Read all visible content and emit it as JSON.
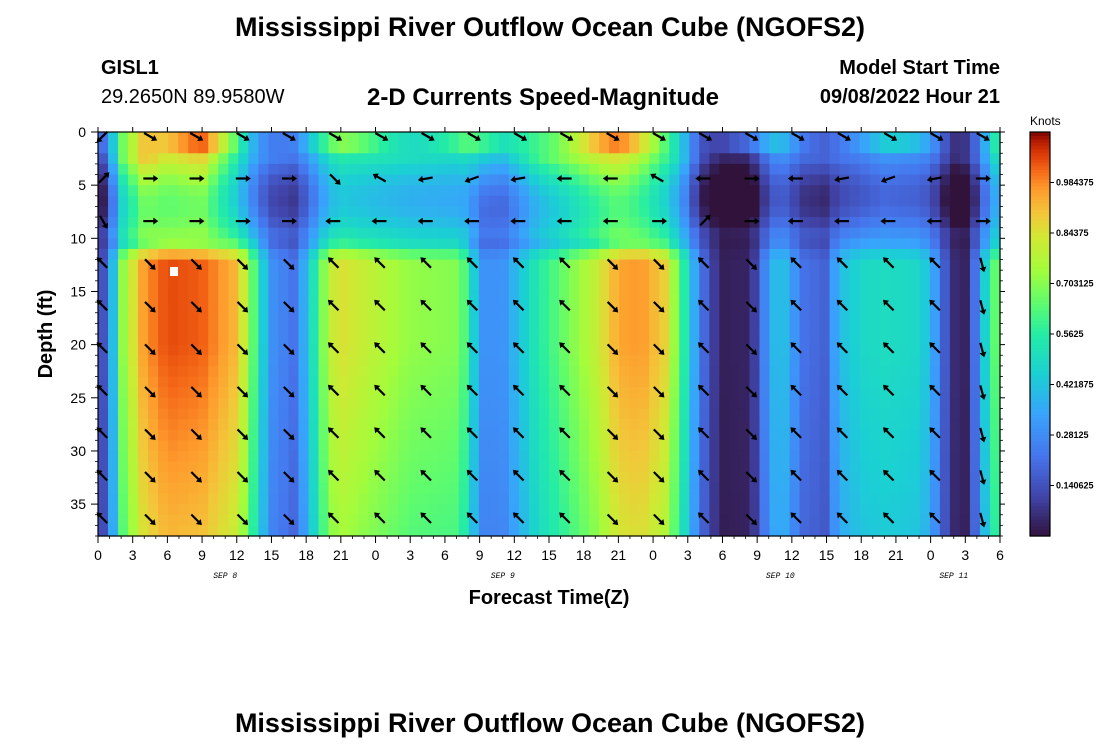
{
  "page": {
    "title": "Mississippi River Outflow Ocean Cube (NGOFS2)",
    "title_repeat": "Mississippi River Outflow Ocean Cube (NGOFS2)"
  },
  "header": {
    "station_id": "GISL1",
    "station_coords": "29.2650N  89.9580W",
    "subtitle": "2-D Currents Speed-Magnitude",
    "model_start_label": "Model Start Time",
    "model_start_value": "09/08/2022 Hour 21"
  },
  "chart_data": {
    "type": "heatmap",
    "title": "2-D Currents Speed-Magnitude",
    "xlabel": "Forecast Time(Z)",
    "ylabel": "Depth (ft)",
    "x_range_hours": [
      0,
      78
    ],
    "y_range_ft": [
      0,
      38
    ],
    "y_inverted": true,
    "x_tick_labels": [
      "0",
      "3",
      "6",
      "9",
      "12",
      "15",
      "18",
      "21",
      "0",
      "3",
      "6",
      "9",
      "12",
      "15",
      "18",
      "21",
      "0",
      "3",
      "6",
      "9",
      "12",
      "15",
      "18",
      "21",
      "0",
      "3",
      "6"
    ],
    "date_labels": [
      {
        "text": "SEP 8",
        "hour": 11
      },
      {
        "text": "SEP 9",
        "hour": 35
      },
      {
        "text": "SEP 10",
        "hour": 59
      },
      {
        "text": "SEP 11",
        "hour": 74
      }
    ],
    "y_tick_labels": [
      "0",
      "5",
      "10",
      "15",
      "20",
      "25",
      "30",
      "35"
    ],
    "colorbar": {
      "unit": "Knots",
      "min": 0.0,
      "max": 1.125,
      "tick_values": [
        0.140625,
        0.28125,
        0.421875,
        0.5625,
        0.703125,
        0.84375,
        0.984375
      ],
      "tick_labels": [
        "0.140625",
        "0.28125",
        "0.421875",
        "0.5625",
        "0.703125",
        "0.84375",
        "0.984375"
      ]
    },
    "speed_profile": {
      "hours": [
        0,
        1,
        2,
        4,
        6,
        9,
        12,
        13,
        14,
        15,
        17,
        18,
        19,
        20,
        21,
        27,
        31,
        32,
        33,
        35,
        38,
        43,
        45,
        47,
        49,
        50,
        51,
        52,
        53,
        54,
        56,
        57,
        58,
        59,
        61,
        63,
        64,
        66,
        68,
        71,
        72,
        73,
        74,
        75,
        76,
        77,
        78
      ],
      "mid_depth_knots": [
        0.05,
        0.28,
        0.7,
        0.97,
        1.05,
        1.03,
        0.92,
        0.75,
        0.5,
        0.3,
        0.22,
        0.4,
        0.6,
        0.8,
        0.85,
        0.72,
        0.7,
        0.6,
        0.3,
        0.3,
        0.55,
        0.8,
        0.95,
        0.97,
        0.88,
        0.7,
        0.5,
        0.25,
        0.12,
        0.03,
        0.04,
        0.12,
        0.35,
        0.44,
        0.22,
        0.18,
        0.4,
        0.48,
        0.5,
        0.48,
        0.4,
        0.2,
        0.06,
        0.04,
        0.25,
        0.55,
        0.72
      ],
      "surface_knots": [
        0.05,
        0.3,
        0.65,
        0.9,
        0.82,
        0.88,
        0.55,
        0.4,
        0.3,
        0.25,
        0.22,
        0.3,
        0.4,
        0.5,
        0.55,
        0.5,
        0.48,
        0.5,
        0.45,
        0.4,
        0.6,
        0.8,
        0.85,
        0.75,
        0.6,
        0.5,
        0.35,
        0.15,
        0.08,
        0.04,
        0.05,
        0.12,
        0.25,
        0.3,
        0.2,
        0.18,
        0.22,
        0.25,
        0.3,
        0.28,
        0.25,
        0.15,
        0.06,
        0.08,
        0.2,
        0.4,
        0.55
      ]
    },
    "arrow_depths_ft": [
      0,
      4,
      8,
      12,
      16,
      20,
      24,
      28,
      32,
      36
    ],
    "arrow_hours": [
      0,
      4,
      8,
      12,
      16,
      20,
      24,
      28,
      32,
      36,
      40,
      44,
      48,
      52,
      56,
      60,
      64,
      68,
      72,
      76
    ],
    "arrow_bearings_deg": {
      "surface": [
        225,
        120,
        120,
        120,
        120,
        120,
        120,
        120,
        120,
        120,
        120,
        120,
        120,
        120,
        120,
        120,
        120,
        120,
        120,
        120
      ],
      "row1": [
        45,
        90,
        90,
        90,
        90,
        135,
        300,
        260,
        250,
        260,
        270,
        270,
        300,
        270,
        90,
        270,
        260,
        250,
        260,
        90
      ],
      "row2": [
        150,
        90,
        90,
        90,
        90,
        270,
        270,
        270,
        270,
        270,
        270,
        270,
        90,
        45,
        90,
        270,
        270,
        270,
        270,
        90
      ],
      "lower": [
        315,
        135,
        135,
        135,
        135,
        315,
        315,
        315,
        315,
        315,
        315,
        135,
        135,
        315,
        135,
        315,
        315,
        315,
        315,
        165
      ]
    }
  }
}
